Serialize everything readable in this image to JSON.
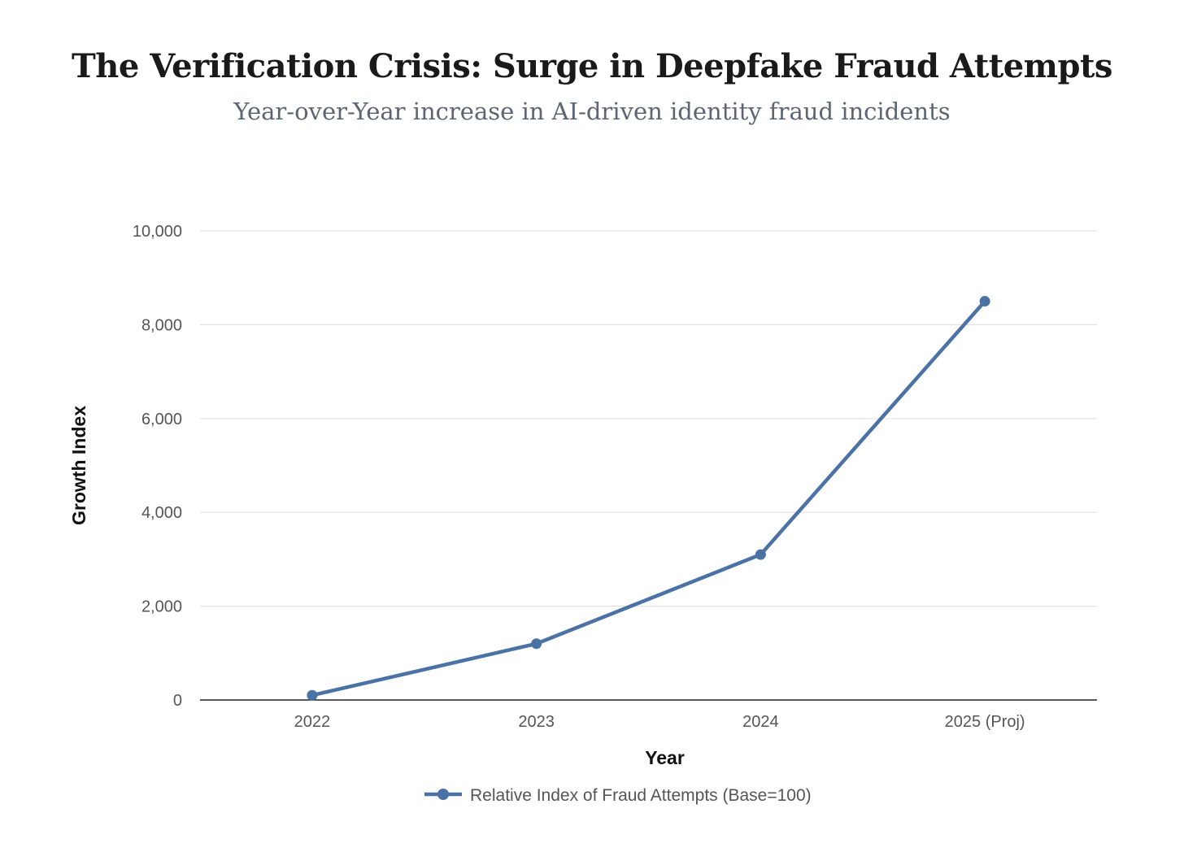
{
  "chart_data": {
    "type": "line",
    "title": "The Verification Crisis: Surge in Deepfake Fraud Attempts",
    "subtitle": "Year-over-Year increase in AI-driven identity fraud incidents",
    "xlabel": "Year",
    "ylabel": "Growth Index",
    "categories": [
      "2022",
      "2023",
      "2024",
      "2025 (Proj)"
    ],
    "series": [
      {
        "name": "Relative Index of Fraud Attempts (Base=100)",
        "values": [
          100,
          1200,
          3100,
          8500
        ],
        "color": "#4a72a5"
      }
    ],
    "ylim": [
      0,
      10000
    ],
    "yticks": [
      0,
      2000,
      4000,
      6000,
      8000,
      10000
    ],
    "ytick_labels": [
      "0",
      "2,000",
      "4,000",
      "6,000",
      "8,000",
      "10,000"
    ],
    "grid": true,
    "legend": "bottom-center"
  }
}
